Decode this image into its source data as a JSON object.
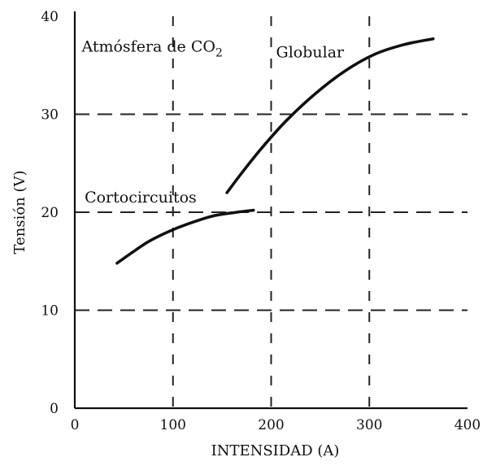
{
  "chart_data": {
    "type": "line",
    "title": "Atmósfera de CO2",
    "xlabel": "INTENSIDAD (A)",
    "ylabel": "Tensión (V)",
    "xlim": [
      0,
      400
    ],
    "ylim": [
      0,
      40
    ],
    "xticks": [
      0,
      100,
      200,
      300,
      400
    ],
    "yticks": [
      0,
      10,
      20,
      30,
      40
    ],
    "grid": true,
    "annotations": [
      {
        "text": "Cortocircuitos",
        "x": 10,
        "y": 21
      },
      {
        "text": "Globular",
        "x": 205,
        "y": 35.8
      }
    ],
    "series": [
      {
        "x": [
          43,
          60,
          75,
          95,
          115,
          140,
          165,
          182
        ],
        "y": [
          14.8,
          16.0,
          17.0,
          18.0,
          18.8,
          19.6,
          20.0,
          20.2
        ]
      },
      {
        "x": [
          155,
          170,
          190,
          215,
          245,
          275,
          305,
          335,
          365
        ],
        "y": [
          22.0,
          24.0,
          26.5,
          29.3,
          32.1,
          34.4,
          36.1,
          37.1,
          37.7
        ]
      }
    ]
  }
}
